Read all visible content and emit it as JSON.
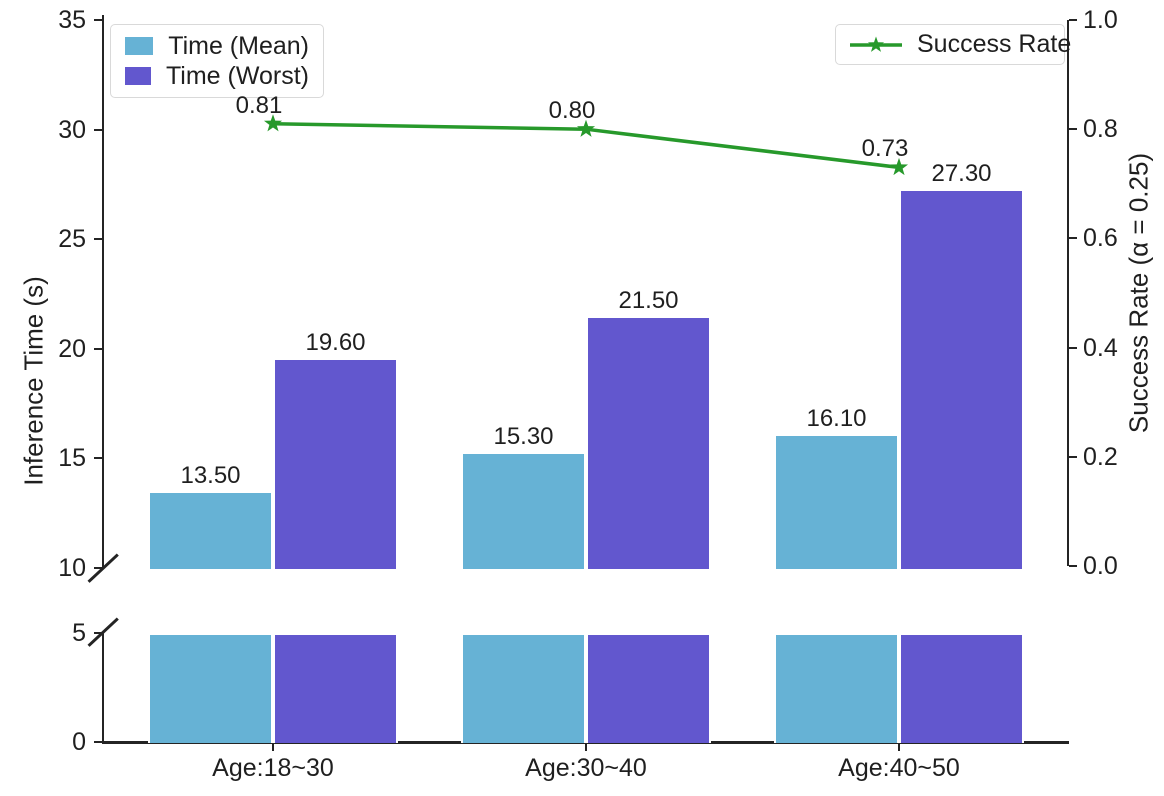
{
  "chart_data": {
    "type": "bar+line",
    "title": "",
    "categories": [
      "Age:18~30",
      "Age:30~40",
      "Age:40~50"
    ],
    "series": [
      {
        "name": "Time (Mean)",
        "type": "bar",
        "values": [
          13.5,
          15.3,
          16.1
        ],
        "value_labels": [
          "13.50",
          "15.30",
          "16.10"
        ],
        "color": "#66b2d5"
      },
      {
        "name": "Time (Worst)",
        "type": "bar",
        "values": [
          19.6,
          21.5,
          27.3
        ],
        "value_labels": [
          "19.60",
          "21.50",
          "27.30"
        ],
        "color": "#6257ce"
      },
      {
        "name": "Success Rate",
        "type": "line",
        "values": [
          0.81,
          0.8,
          0.73
        ],
        "value_labels": [
          "0.81",
          "0.80",
          "0.73"
        ],
        "color": "#27992b",
        "marker": "star"
      }
    ],
    "left_axis": {
      "label": "Inference Time (s)",
      "broken": true,
      "upper_ticks": [
        "35",
        "30",
        "25",
        "20",
        "15",
        "10"
      ],
      "lower_ticks": [
        "5",
        "0"
      ],
      "upper_range": [
        10,
        35
      ],
      "lower_range": [
        0,
        5
      ]
    },
    "right_axis": {
      "label": "Success Rate (α = 0.25)",
      "ticks": [
        "1.0",
        "0.8",
        "0.6",
        "0.4",
        "0.2",
        "0.0"
      ],
      "range": [
        0,
        1
      ]
    },
    "legend": {
      "bar_entries": [
        "Time (Mean)",
        "Time (Worst)"
      ],
      "line_entries": [
        "Success Rate"
      ]
    },
    "grid": false,
    "legend_positions": [
      "upper left",
      "upper right"
    ]
  }
}
